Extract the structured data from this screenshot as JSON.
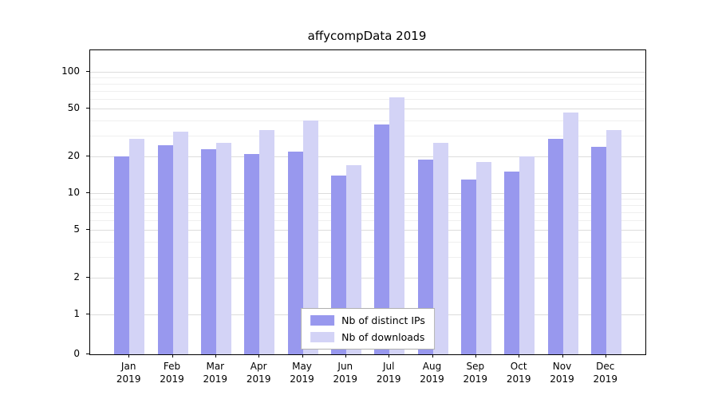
{
  "chart_data": {
    "type": "bar",
    "title": "affycompData 2019",
    "categories": [
      "Jan",
      "Feb",
      "Mar",
      "Apr",
      "May",
      "Jun",
      "Jul",
      "Aug",
      "Sep",
      "Oct",
      "Nov",
      "Dec"
    ],
    "year": "2019",
    "series": [
      {
        "name": "Nb of distinct IPs",
        "color": "#9898ee",
        "values": [
          20,
          25,
          23,
          21,
          22,
          14,
          37,
          19,
          13,
          15,
          28,
          24
        ]
      },
      {
        "name": "Nb of downloads",
        "color": "#d3d3f6",
        "values": [
          28,
          32,
          26,
          33,
          40,
          17,
          62,
          26,
          18,
          20,
          46,
          33
        ]
      }
    ],
    "yscale": "log",
    "yticks": [
      0,
      1,
      2,
      5,
      10,
      20,
      50,
      100
    ],
    "ylim": [
      0,
      160
    ],
    "grid": true,
    "legend_position": "lower-center",
    "colors": {
      "grid_major": "#dcdcdc",
      "grid_minor": "#efefef",
      "axis": "#000000",
      "legend_border": "#b0b0b0"
    }
  }
}
